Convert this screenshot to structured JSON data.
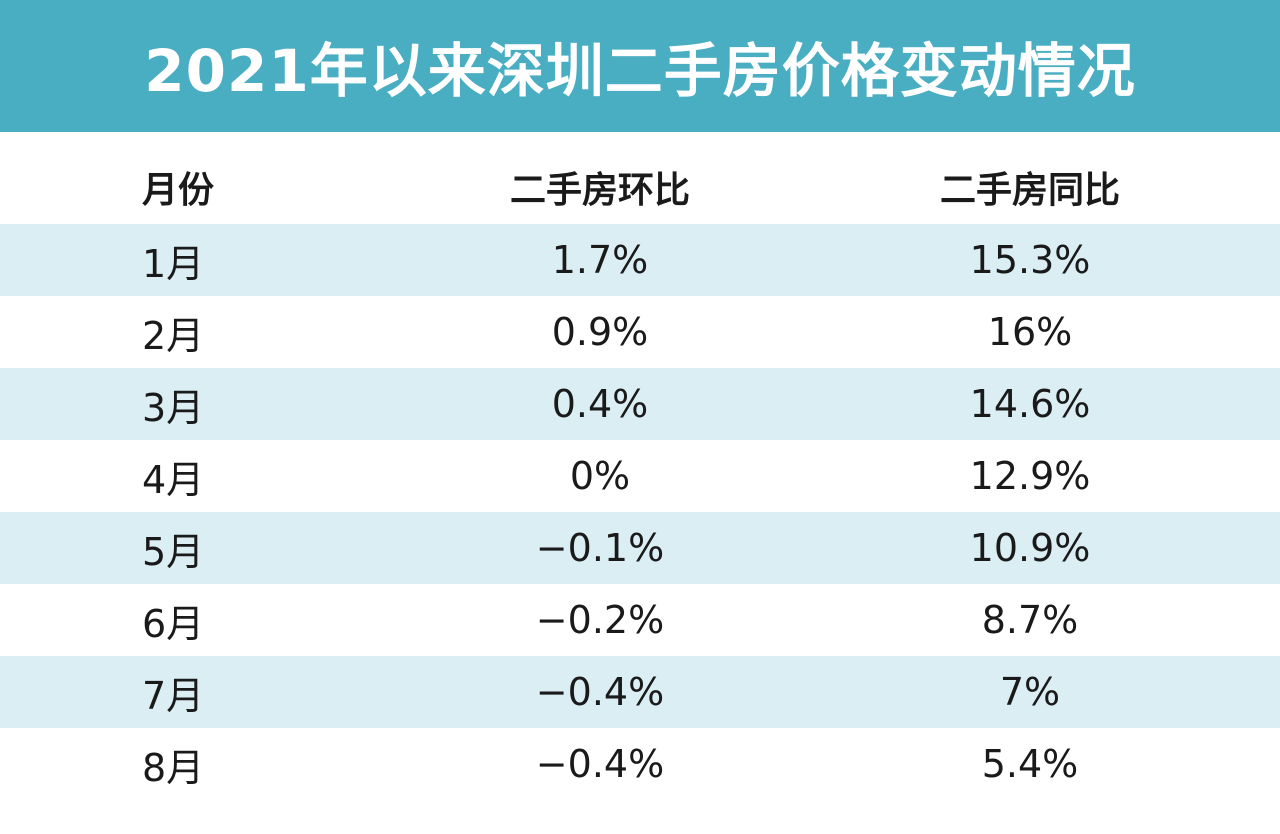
{
  "chart_data": {
    "type": "table",
    "title": "2021年以来深圳二手房价格变动情况",
    "columns": [
      "月份",
      "二手房环比",
      "二手房同比"
    ],
    "rows": [
      {
        "month": "1月",
        "mom": "1.7%",
        "yoy": "15.3%"
      },
      {
        "month": "2月",
        "mom": "0.9%",
        "yoy": "16%"
      },
      {
        "month": "3月",
        "mom": "0.4%",
        "yoy": "14.6%"
      },
      {
        "month": "4月",
        "mom": "0%",
        "yoy": "12.9%"
      },
      {
        "month": "5月",
        "mom": "−0.1%",
        "yoy": "10.9%"
      },
      {
        "month": "6月",
        "mom": "−0.2%",
        "yoy": "8.7%"
      },
      {
        "month": "7月",
        "mom": "−0.4%",
        "yoy": "7%"
      },
      {
        "month": "8月",
        "mom": "−0.4%",
        "yoy": "5.4%"
      }
    ],
    "mom_values": [
      1.7,
      0.9,
      0.4,
      0,
      -0.1,
      -0.2,
      -0.4,
      -0.4
    ],
    "yoy_values": [
      15.3,
      16,
      14.6,
      12.9,
      10.9,
      8.7,
      7,
      5.4
    ]
  },
  "colors": {
    "title_bg": "#4aaec3",
    "title_text": "#ffffff",
    "row_shade": "#daeef3"
  }
}
